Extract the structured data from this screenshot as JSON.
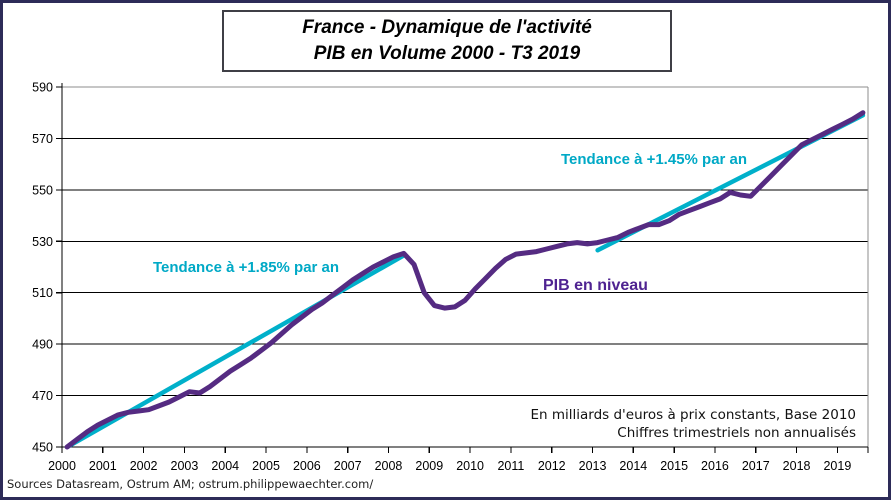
{
  "title": {
    "line1": "France - Dynamique de l'activité",
    "line2": "PIB en Volume 2000 - T3 2019"
  },
  "labels": {
    "trend1": "Tendance à +1.85% par an",
    "trend2": "Tendance à +1.45% par an",
    "series": "PIB en niveau",
    "note_line1": "En milliards d'euros à prix constants, Base 2010",
    "note_line2": "Chiffres trimestriels non annualisés",
    "source": "Sources Datasream, Ostrum AM; ostrum.philippewaechter.com/"
  },
  "colors": {
    "pib_line": "#552b82",
    "trend_line": "#00b0ca",
    "trend_text": "#00a9c6",
    "series_text": "#4f2391",
    "outer_border": "#2d2b58",
    "grid": "#000000",
    "frame_gray": "#8c8c8c"
  },
  "chart_data": {
    "type": "line",
    "title": "France - Dynamique de l'activité / PIB en Volume 2000 - T3 2019",
    "xlabel": "",
    "ylabel": "PIB en milliards d'euros à prix constants, Base 2010, chiffres trimestriels non annualisés",
    "x_tick_labels": [
      "2000",
      "2001",
      "2002",
      "2003",
      "2004",
      "2005",
      "2006",
      "2007",
      "2008",
      "2009",
      "2010",
      "2011",
      "2012",
      "2013",
      "2014",
      "2015",
      "2016",
      "2017",
      "2018",
      "2019"
    ],
    "quarters_start": "2000-T1",
    "quarters_end": "2019-T3",
    "ylim": [
      450,
      590
    ],
    "y_ticks": [
      450,
      470,
      490,
      510,
      530,
      550,
      570,
      590
    ],
    "grid": true,
    "legend_position": "none",
    "series": [
      {
        "name": "PIB en niveau",
        "kind": "quarterly",
        "values": [
          450.0,
          453.0,
          456.0,
          458.5,
          460.5,
          462.5,
          463.5,
          464.0,
          464.5,
          466.0,
          467.5,
          469.5,
          471.5,
          471.0,
          473.5,
          476.5,
          479.5,
          482.0,
          484.5,
          487.5,
          490.5,
          494.0,
          497.5,
          500.5,
          503.5,
          506.0,
          509.0,
          512.0,
          515.0,
          517.5,
          520.0,
          522.0,
          524.0,
          525.3,
          521.0,
          510.0,
          505.0,
          504.0,
          504.5,
          507.0,
          511.5,
          515.5,
          519.5,
          523.0,
          525.0,
          525.5,
          526.0,
          527.0,
          528.0,
          529.0,
          529.5,
          529.0,
          529.5,
          530.5,
          531.5,
          533.5,
          535.0,
          536.5,
          536.5,
          538.0,
          540.5,
          542.0,
          543.5,
          545.0,
          546.5,
          549.0,
          548.0,
          547.5,
          551.5,
          555.5,
          559.5,
          563.5,
          567.5,
          569.5,
          571.5,
          573.5,
          575.5,
          577.5,
          580.0
        ]
      },
      {
        "name": "Tendance à +1.85% par an",
        "kind": "trend",
        "annual_growth_pct": 1.85,
        "start_index": 0,
        "end_index": 33,
        "start_value": 450.0,
        "end_value": 524.5
      },
      {
        "name": "Tendance à +1.45% par an",
        "kind": "trend",
        "annual_growth_pct": 1.45,
        "start_index": 52,
        "end_index": 78,
        "start_value": 526.5,
        "end_value": 579.0
      }
    ]
  }
}
